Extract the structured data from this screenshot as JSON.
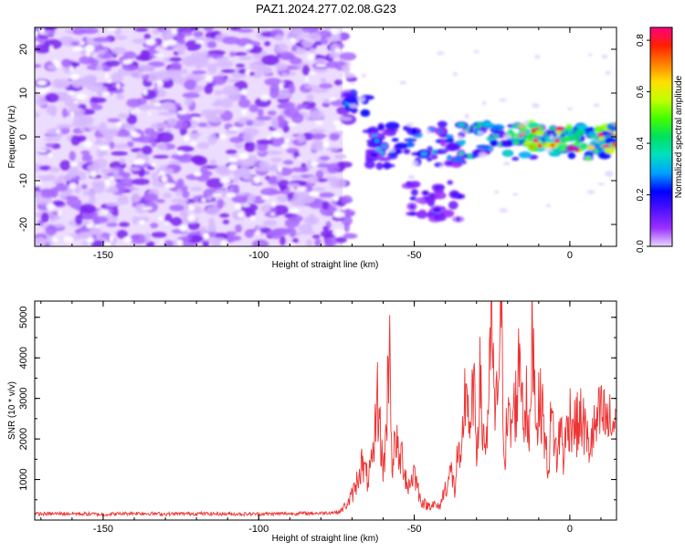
{
  "chart_data": [
    {
      "type": "heatmap",
      "title": "PAZ1.2024.277.02.08.G23",
      "xlabel": "Height of straight line (km)",
      "ylabel": "Frequency (Hz)",
      "xlim": [
        -172,
        15
      ],
      "ylim": [
        -25,
        25
      ],
      "x_ticks": [
        -150,
        -100,
        -50,
        0
      ],
      "y_ticks": [
        -20,
        -10,
        0,
        10,
        20
      ],
      "grid": false,
      "colorbar": {
        "label": "Normalized spectral amplitude",
        "range": [
          0.0,
          0.85
        ],
        "ticks": [
          0.0,
          0.2,
          0.4,
          0.6,
          0.8
        ],
        "colormap": [
          "#e8d8ff",
          "#9b30ff",
          "#5010ff",
          "#0000ff",
          "#00a0ff",
          "#00e0c0",
          "#00e060",
          "#40ff00",
          "#c0ff00",
          "#ffe000",
          "#ff8000",
          "#ff2000",
          "#ff0080"
        ]
      },
      "regions": [
        {
          "description": "scattered noise blobs",
          "x": [
            -172,
            -73
          ],
          "y": [
            -25,
            25
          ],
          "amplitude": 0.1
        },
        {
          "x": [
            -72,
            -65
          ],
          "y": [
            5,
            10
          ],
          "amplitude": 0.25
        },
        {
          "x": [
            -65,
            -35
          ],
          "y": [
            -7,
            3
          ],
          "amplitude": 0.22
        },
        {
          "x": [
            -52,
            -35
          ],
          "y": [
            -19,
            -10
          ],
          "amplitude": 0.15
        },
        {
          "x": [
            -35,
            15
          ],
          "y": [
            -5,
            3
          ],
          "amplitude": 0.35
        },
        {
          "x": [
            -20,
            15
          ],
          "y": [
            -3,
            3
          ],
          "amplitude": 0.65
        }
      ]
    },
    {
      "type": "line",
      "xlabel": "Height of straight line (km)",
      "ylabel": "SNR (10 * v/v)",
      "xlim": [
        -172,
        15
      ],
      "ylim": [
        0,
        5400
      ],
      "x_ticks": [
        -150,
        -100,
        -50,
        0
      ],
      "y_ticks": [
        1000,
        2000,
        3000,
        4000,
        5000
      ],
      "grid": false,
      "color": "#ee3333",
      "series": [
        {
          "x": [
            -172,
            -160,
            -150,
            -140,
            -130,
            -120,
            -110,
            -100,
            -90,
            -80,
            -74,
            -71,
            -69,
            -67,
            -65,
            -63,
            -62,
            -60,
            -59,
            -58,
            -57,
            -56,
            -55,
            -54,
            -52,
            -50,
            -48,
            -46,
            -44,
            -42,
            -40,
            -38,
            -37,
            -36,
            -35,
            -34,
            -33,
            -32,
            -31,
            -30,
            -29,
            -28,
            -27,
            -26,
            -25,
            -24,
            -23,
            -22,
            -21,
            -20,
            -19,
            -18,
            -17,
            -16,
            -15,
            -14,
            -13,
            -12,
            -11,
            -10,
            -9,
            -8,
            -7,
            -6,
            -5,
            -4,
            -3,
            -2,
            -1,
            0,
            2,
            4,
            6,
            8,
            10,
            12,
            14,
            15
          ],
          "values": [
            150,
            160,
            140,
            170,
            150,
            160,
            150,
            150,
            160,
            170,
            200,
            450,
            800,
            1400,
            1000,
            1500,
            3200,
            1200,
            2100,
            4800,
            1000,
            2200,
            1400,
            1600,
            800,
            1200,
            500,
            350,
            400,
            300,
            800,
            1200,
            700,
            1700,
            1100,
            2900,
            3400,
            1800,
            3500,
            1600,
            3500,
            2200,
            1800,
            3000,
            5000,
            2100,
            3800,
            4800,
            1600,
            2500,
            2200,
            2700,
            3000,
            4400,
            2600,
            2900,
            1600,
            5400,
            2600,
            2700,
            2900,
            2000,
            1200,
            2500,
            2100,
            1400,
            2500,
            1500,
            2200,
            2600,
            2300,
            2500,
            1800,
            2200,
            2600,
            2400,
            2300,
            2700
          ]
        }
      ]
    }
  ]
}
